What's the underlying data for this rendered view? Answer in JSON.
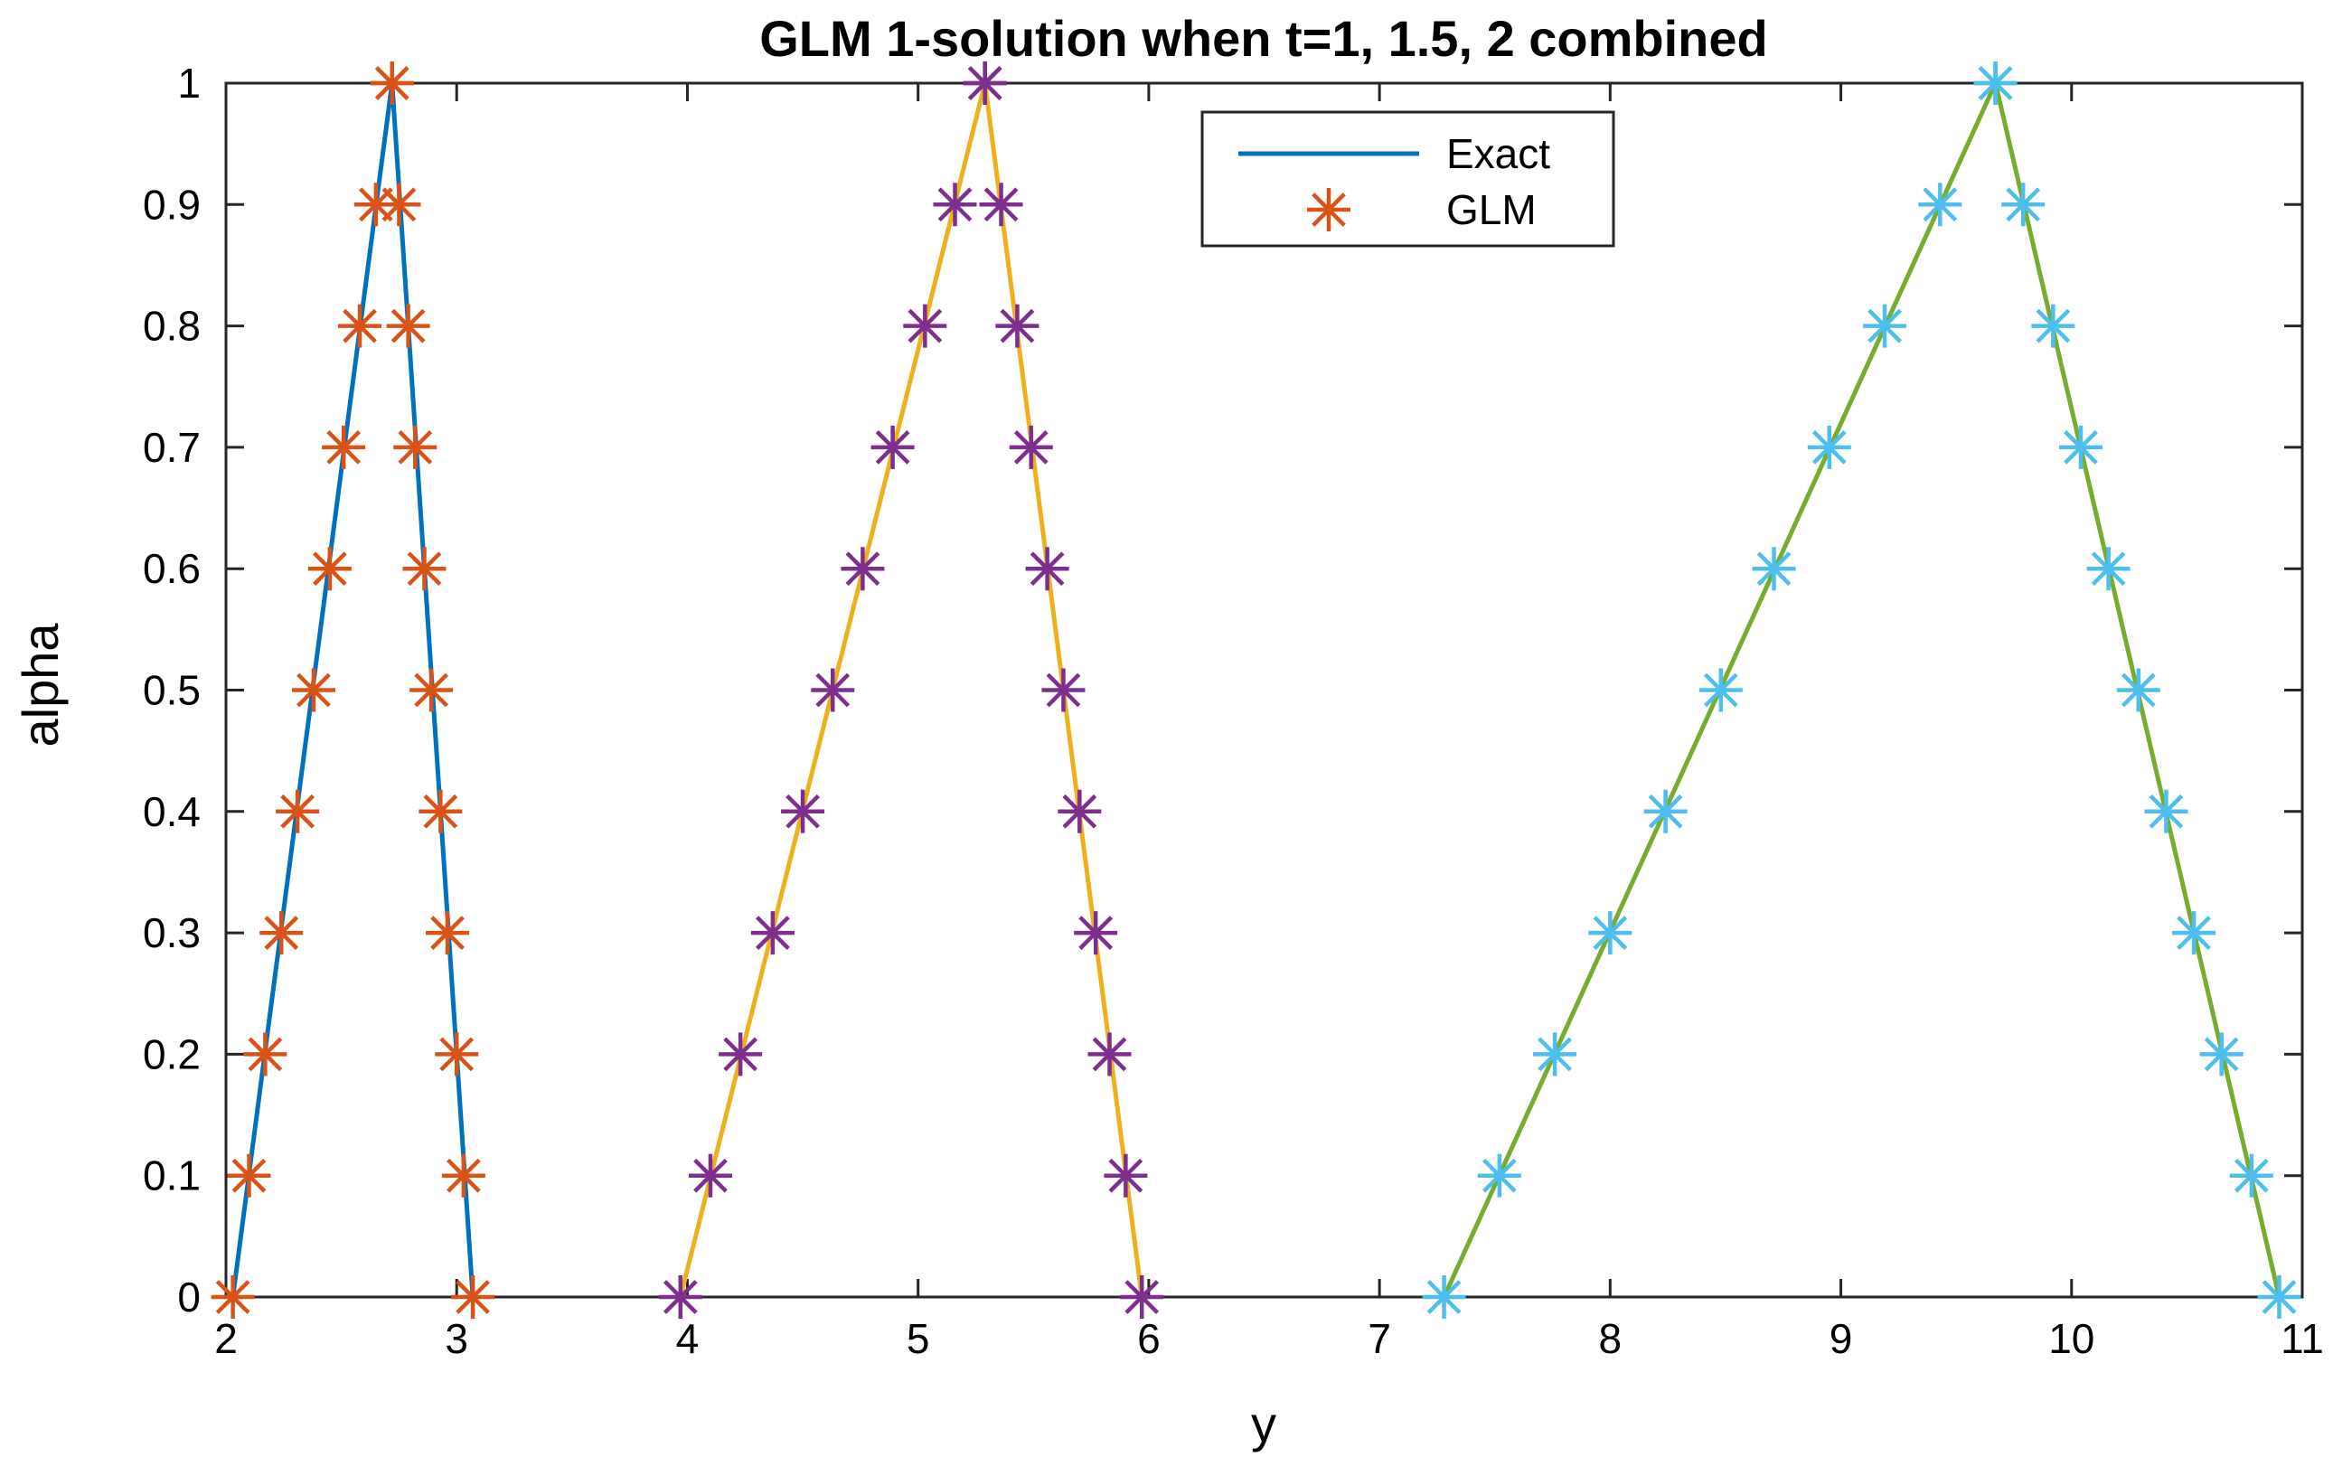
{
  "chart_data": {
    "type": "line",
    "title": "GLM 1-solution when t=1, 1.5, 2 combined",
    "xlabel": "y",
    "ylabel": "alpha",
    "xlim": [
      2,
      11
    ],
    "ylim": [
      0,
      1
    ],
    "xticks": [
      "2",
      "3",
      "4",
      "5",
      "6",
      "7",
      "8",
      "9",
      "10",
      "11"
    ],
    "yticks": [
      "0",
      "0.1",
      "0.2",
      "0.3",
      "0.4",
      "0.5",
      "0.6",
      "0.7",
      "0.8",
      "0.9",
      "1"
    ],
    "grid": false,
    "legend_position": "top-center",
    "legend": [
      {
        "label": "Exact",
        "style": "line",
        "color": "#0072BD"
      },
      {
        "label": "GLM",
        "style": "asterisk",
        "color": "#D95319"
      }
    ],
    "series": [
      {
        "name": "Exact",
        "kind": "line",
        "color": "#0072BD",
        "x": [
          2.03,
          2.72,
          3.07
        ],
        "y": [
          0,
          1,
          0
        ]
      },
      {
        "name": "GLM",
        "kind": "marker",
        "color": "#D95319",
        "left_x": [
          2.03,
          2.1,
          2.17,
          2.24,
          2.31,
          2.38,
          2.45,
          2.51,
          2.58,
          2.65,
          2.72
        ],
        "right_x": [
          3.07,
          3.03,
          3.0,
          2.96,
          2.93,
          2.89,
          2.86,
          2.82,
          2.79,
          2.75,
          2.72
        ],
        "y": [
          0,
          0.1,
          0.2,
          0.3,
          0.4,
          0.5,
          0.6,
          0.7,
          0.8,
          0.9,
          1
        ]
      },
      {
        "kind": "line",
        "color": "#EDB120",
        "x": [
          3.97,
          5.29,
          5.97
        ],
        "y": [
          0,
          1,
          0
        ]
      },
      {
        "kind": "marker",
        "color": "#7E2F8E",
        "left_x": [
          3.97,
          4.1,
          4.23,
          4.37,
          4.5,
          4.63,
          4.76,
          4.89,
          5.03,
          5.16,
          5.29
        ],
        "right_x": [
          5.97,
          5.9,
          5.83,
          5.77,
          5.7,
          5.63,
          5.56,
          5.49,
          5.43,
          5.36,
          5.29
        ],
        "y": [
          0,
          0.1,
          0.2,
          0.3,
          0.4,
          0.5,
          0.6,
          0.7,
          0.8,
          0.9,
          1
        ]
      },
      {
        "kind": "line",
        "color": "#77AC30",
        "x": [
          7.28,
          9.67,
          10.9
        ],
        "y": [
          0,
          1,
          0
        ]
      },
      {
        "kind": "marker",
        "color": "#4DBEEE",
        "left_x": [
          7.28,
          7.52,
          7.76,
          8.0,
          8.24,
          8.48,
          8.71,
          8.95,
          9.19,
          9.43,
          9.67
        ],
        "right_x": [
          10.9,
          10.78,
          10.65,
          10.53,
          10.41,
          10.29,
          10.16,
          10.04,
          9.92,
          9.79,
          9.67
        ],
        "y": [
          0,
          0.1,
          0.2,
          0.3,
          0.4,
          0.5,
          0.6,
          0.7,
          0.8,
          0.9,
          1
        ]
      }
    ]
  }
}
